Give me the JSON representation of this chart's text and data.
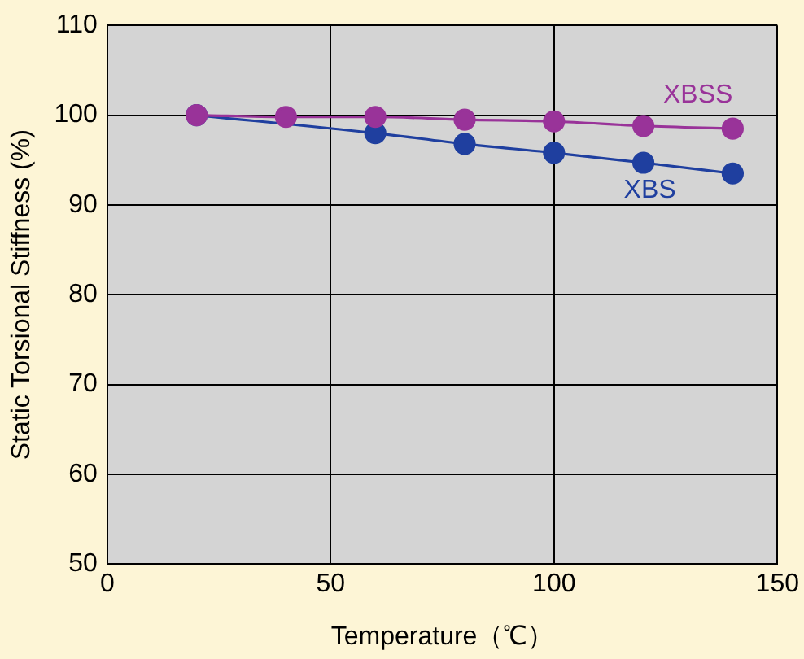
{
  "chart_data": {
    "type": "line",
    "xlabel": "Temperature（℃）",
    "ylabel": "Static Torsional Stiffness (%)",
    "xlim": [
      0,
      150
    ],
    "xticks": [
      0,
      50,
      100,
      150
    ],
    "ylim": [
      50,
      110
    ],
    "yticks": [
      50,
      60,
      70,
      80,
      90,
      100,
      110
    ],
    "grid": true,
    "legend": false,
    "marker": "circle",
    "series": [
      {
        "name": "XBSS",
        "color": "#993399",
        "x": [
          20,
          40,
          60,
          80,
          100,
          120,
          140
        ],
        "values": [
          100,
          99.8,
          99.8,
          99.5,
          99.3,
          98.8,
          98.5
        ]
      },
      {
        "name": "XBS",
        "color": "#1f3f9f",
        "x": [
          20,
          60,
          80,
          100,
          120,
          140
        ],
        "values": [
          100,
          98,
          96.8,
          95.8,
          94.7,
          93.5
        ]
      }
    ]
  }
}
